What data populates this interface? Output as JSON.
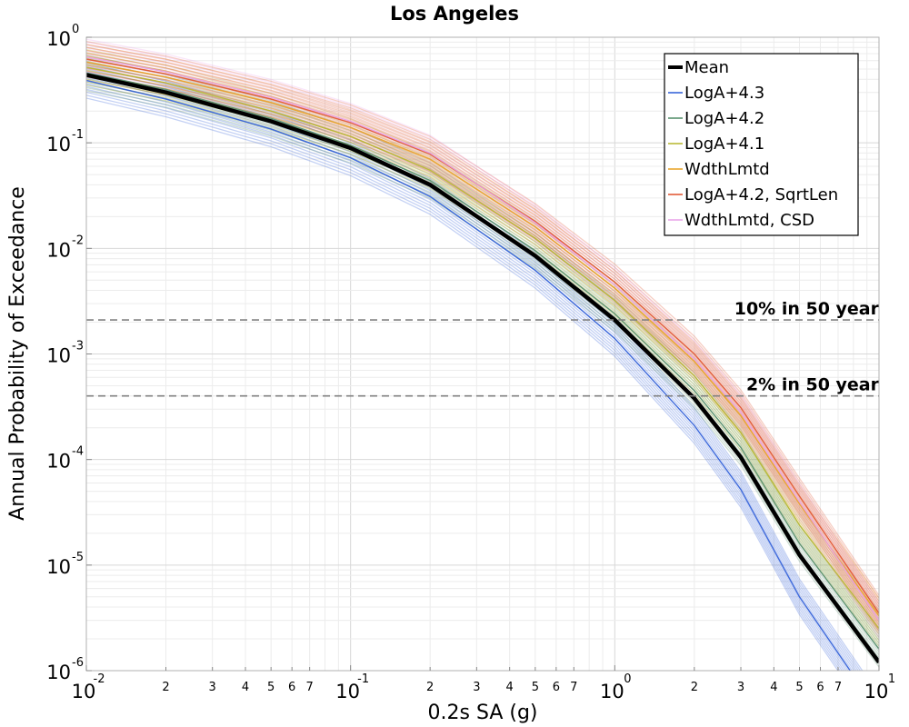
{
  "chart_data": {
    "type": "line",
    "title": "Los Angeles",
    "xlabel": "0.2s SA (g)",
    "ylabel": "Annual Probability of Exceedance",
    "x_scale": "log",
    "y_scale": "log",
    "xlim": [
      0.01,
      10
    ],
    "ylim": [
      1e-06,
      1
    ],
    "grid": true,
    "legend_position": "top-right",
    "x_major_ticks": [
      {
        "base": "10",
        "exp": "-2",
        "value": 0.01
      },
      {
        "base": "10",
        "exp": "-1",
        "value": 0.1
      },
      {
        "base": "10",
        "exp": "0",
        "value": 1
      },
      {
        "base": "10",
        "exp": "1",
        "value": 10
      }
    ],
    "x_minor_tick_labels": [
      "2",
      "3",
      "4",
      "5",
      "6",
      "7"
    ],
    "y_major_ticks": [
      {
        "base": "10",
        "exp": "0",
        "value": 1
      },
      {
        "base": "10",
        "exp": "-1",
        "value": 0.1
      },
      {
        "base": "10",
        "exp": "-2",
        "value": 0.01
      },
      {
        "base": "10",
        "exp": "-3",
        "value": 0.001
      },
      {
        "base": "10",
        "exp": "-4",
        "value": 0.0001
      },
      {
        "base": "10",
        "exp": "-5",
        "value": 1e-05
      },
      {
        "base": "10",
        "exp": "-6",
        "value": 1e-06
      }
    ],
    "reference_lines": [
      {
        "label": "10% in 50 year",
        "y": 0.0021,
        "color": "#808080"
      },
      {
        "label": "2% in 50 year",
        "y": 0.0004,
        "color": "#808080"
      }
    ],
    "series": [
      {
        "name": "Mean",
        "color": "#000000",
        "x": [
          0.01,
          0.02,
          0.05,
          0.1,
          0.2,
          0.5,
          1,
          2,
          3,
          5,
          10
        ],
        "y": [
          0.44,
          0.3,
          0.16,
          0.089,
          0.04,
          0.0085,
          0.0021,
          0.00038,
          0.000105,
          1.25e-05,
          1.2e-06
        ]
      },
      {
        "name": "LogA+4.3",
        "color": "#2a5bd7",
        "x": [
          0.01,
          0.02,
          0.05,
          0.1,
          0.2,
          0.5,
          1,
          2,
          3,
          5,
          10
        ],
        "y": [
          0.39,
          0.26,
          0.135,
          0.072,
          0.031,
          0.0062,
          0.0014,
          0.00021,
          5.2e-05,
          5e-06,
          4e-07
        ]
      },
      {
        "name": "LogA+4.2",
        "color": "#4e8a66",
        "x": [
          0.01,
          0.02,
          0.05,
          0.1,
          0.2,
          0.5,
          1,
          2,
          3,
          5,
          10
        ],
        "y": [
          0.46,
          0.32,
          0.17,
          0.095,
          0.044,
          0.0095,
          0.0024,
          0.00045,
          0.00013,
          1.6e-05,
          1.6e-06
        ]
      },
      {
        "name": "LogA+4.1",
        "color": "#b5b52a",
        "x": [
          0.01,
          0.02,
          0.05,
          0.1,
          0.2,
          0.5,
          1,
          2,
          3,
          5,
          10
        ],
        "y": [
          0.52,
          0.37,
          0.2,
          0.115,
          0.055,
          0.0125,
          0.0032,
          0.00062,
          0.00018,
          2.4e-05,
          2.5e-06
        ]
      },
      {
        "name": "WdthLmtd",
        "color": "#e8a020",
        "x": [
          0.01,
          0.02,
          0.05,
          0.1,
          0.2,
          0.5,
          1,
          2,
          3,
          5,
          10
        ],
        "y": [
          0.58,
          0.42,
          0.24,
          0.14,
          0.07,
          0.016,
          0.0042,
          0.00085,
          0.00026,
          3.8e-05,
          3.3e-06
        ]
      },
      {
        "name": "LogA+4.2, SqrtLen",
        "color": "#e0502a",
        "x": [
          0.01,
          0.02,
          0.05,
          0.1,
          0.2,
          0.5,
          1,
          2,
          3,
          5,
          10
        ],
        "y": [
          0.62,
          0.45,
          0.26,
          0.155,
          0.078,
          0.018,
          0.0048,
          0.001,
          0.00031,
          4.5e-05,
          3.5e-06
        ]
      },
      {
        "name": "WdthLmtd, CSD",
        "color": "#e8a0e8",
        "x": [
          0.01,
          0.02,
          0.05,
          0.1,
          0.2,
          0.5,
          1,
          2,
          3,
          5,
          10
        ],
        "y": [
          0.65,
          0.47,
          0.27,
          0.16,
          0.08,
          0.0175,
          0.0045,
          0.0009,
          0.00028,
          4e-05,
          3e-06
        ]
      }
    ]
  }
}
